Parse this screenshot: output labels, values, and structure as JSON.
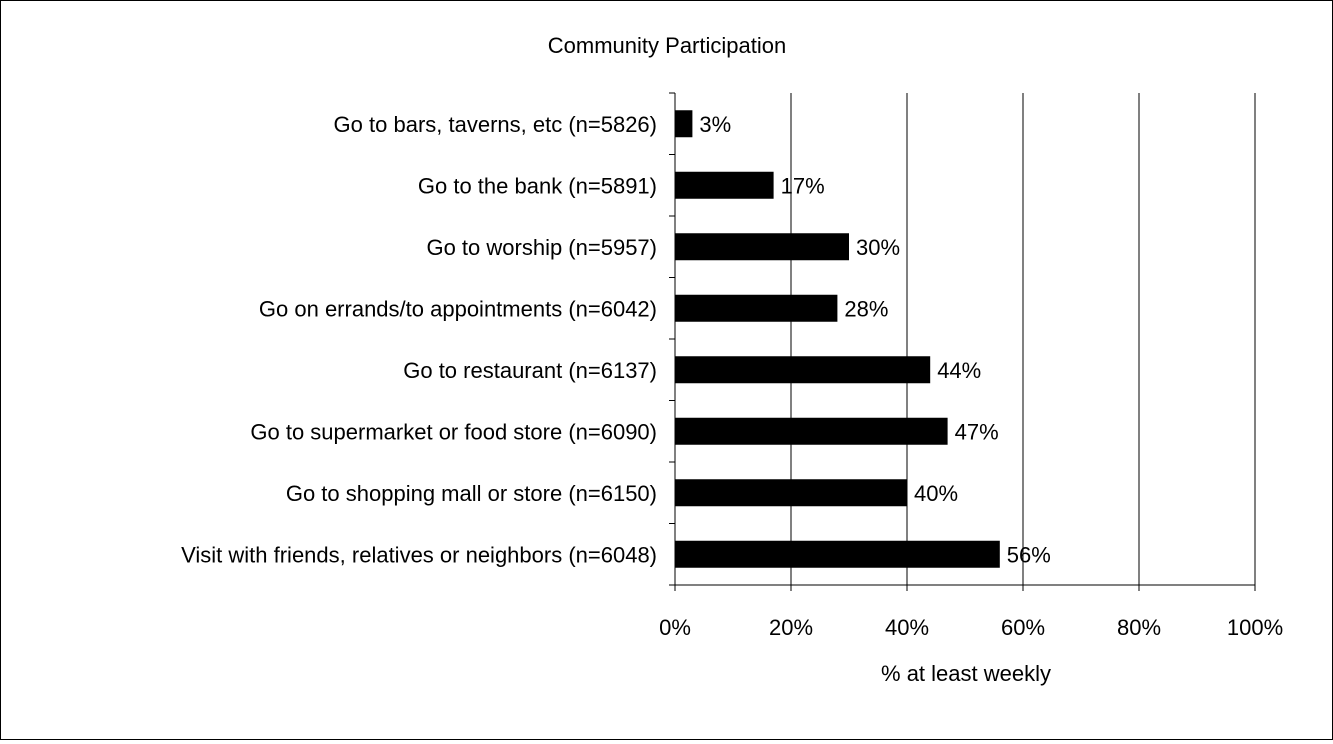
{
  "chart_data": {
    "type": "bar",
    "orientation": "horizontal",
    "title": "Community Participation",
    "xlabel": "% at least weekly",
    "ylabel": "",
    "xlim": [
      0,
      100
    ],
    "x_ticks": [
      0,
      20,
      40,
      60,
      80,
      100
    ],
    "x_tick_labels": [
      "0%",
      "20%",
      "40%",
      "60%",
      "80%",
      "100%"
    ],
    "grid": "vertical",
    "legend": "none",
    "bar_color": "#000000",
    "categories": [
      "Go to bars, taverns, etc (n=5826)",
      "Go to the bank (n=5891)",
      "Go to worship (n=5957)",
      "Go on errands/to appointments (n=6042)",
      "Go to restaurant (n=6137)",
      "Go to supermarket or food store (n=6090)",
      "Go to shopping mall or store (n=6150)",
      "Visit with friends, relatives or neighbors (n=6048)"
    ],
    "values": [
      3,
      17,
      30,
      28,
      44,
      47,
      40,
      56
    ],
    "data_labels": [
      "3%",
      "17%",
      "30%",
      "28%",
      "44%",
      "47%",
      "40%",
      "56%"
    ]
  }
}
